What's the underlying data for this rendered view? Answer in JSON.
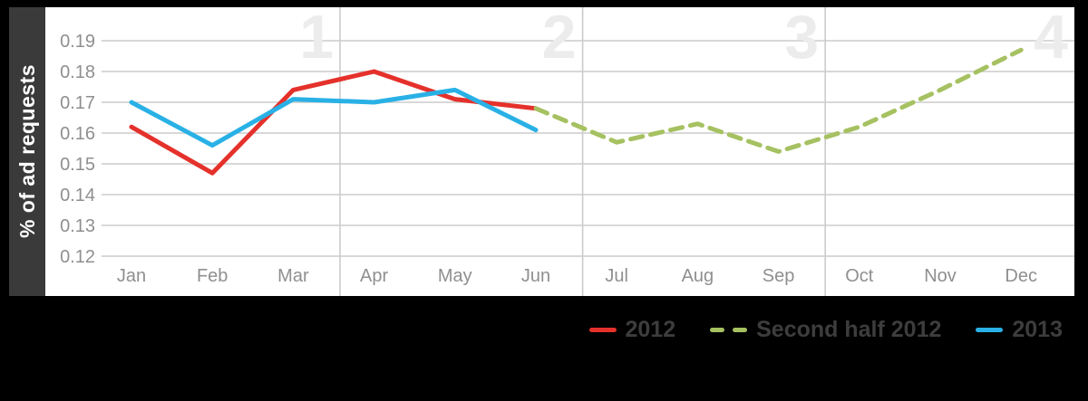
{
  "chart_data": {
    "type": "line",
    "title": "",
    "ylabel": "% of ad requests",
    "x_categories": [
      "Jan",
      "Feb",
      "Mar",
      "Apr",
      "May",
      "Jun",
      "Jul",
      "Aug",
      "Sep",
      "Oct",
      "Nov",
      "Dec"
    ],
    "y_ticks": [
      0.19,
      0.18,
      0.17,
      0.16,
      0.15,
      0.14,
      0.13,
      0.12
    ],
    "ylim": [
      0.12,
      0.19
    ],
    "grid": true,
    "quarter_labels": [
      "1",
      "2",
      "3",
      "4"
    ],
    "legend_position": "bottom-right",
    "series": [
      {
        "name": "2012",
        "color": "#e5312b",
        "line_style": "solid",
        "start_month_index": 0,
        "months": [
          "Jan",
          "Feb",
          "Mar",
          "Apr",
          "May",
          "Jun"
        ],
        "values": [
          0.162,
          0.147,
          0.174,
          0.18,
          0.171,
          0.168
        ]
      },
      {
        "name": "Second half 2012",
        "color": "#a6c161",
        "line_style": "dashed",
        "start_month_index": 5,
        "months": [
          "Jun",
          "Jul",
          "Aug",
          "Sep",
          "Oct",
          "Nov",
          "Dec"
        ],
        "values": [
          0.168,
          0.157,
          0.163,
          0.154,
          0.162,
          0.174,
          0.187
        ]
      },
      {
        "name": "2013",
        "color": "#29b1e6",
        "line_style": "solid",
        "start_month_index": 0,
        "months": [
          "Jan",
          "Feb",
          "Mar",
          "Apr",
          "May",
          "Jun"
        ],
        "values": [
          0.17,
          0.156,
          0.171,
          0.17,
          0.174,
          0.161
        ]
      }
    ]
  },
  "legend": {
    "items": [
      {
        "label": "2012",
        "style": "solid"
      },
      {
        "label": "Second half 2012",
        "style": "dashed"
      },
      {
        "label": "2013",
        "style": "solid"
      }
    ]
  },
  "colors": {
    "frame_bg": "#000000",
    "panel_bg": "#ffffff",
    "sidebar_bg": "#3a3a3a",
    "grid_line": "#cccccc",
    "tick_text": "#8f8f8f",
    "quarter_number": "#ececec",
    "legend_text": "#3d3d3d",
    "series_2012": "#e5312b",
    "series_second_half_2012": "#a6c161",
    "series_2013": "#29b1e6"
  }
}
